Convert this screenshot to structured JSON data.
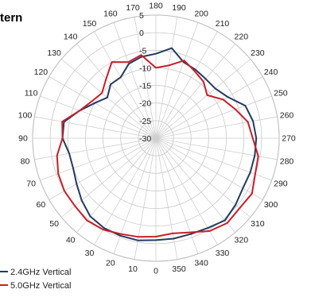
{
  "chart_data": {
    "type": "radar",
    "title": "tern",
    "angle_direction": "clockwise",
    "angle_zero": "top",
    "angle_ticks": [
      180,
      190,
      200,
      210,
      220,
      230,
      240,
      250,
      260,
      270,
      280,
      290,
      300,
      310,
      320,
      330,
      340,
      350,
      0,
      10,
      20,
      30,
      40,
      50,
      60,
      70,
      80,
      90,
      100,
      110,
      120,
      130,
      140,
      150,
      160,
      170
    ],
    "radial_ticks": [
      5,
      0,
      -5,
      -10,
      -15,
      -20,
      -25,
      -30
    ],
    "rlim": [
      -30,
      5
    ],
    "grid": true,
    "legend_position": "bottom-left",
    "series": [
      {
        "name": "2.4GHz Vertical",
        "color": "#243a5e",
        "values": [
          -6,
          -4,
          -7,
          -7.5,
          -8,
          -8,
          -6.5,
          -3,
          -2,
          -1.5,
          -1.5,
          -1.5,
          -1.5,
          -0.5,
          0.5,
          -0.5,
          -1,
          -1,
          -1,
          -0.5,
          -0.5,
          -0.5,
          -1,
          -2.5,
          -4,
          -5,
          -5,
          -3.5,
          -3.5,
          -7,
          -10,
          -12,
          -10,
          -10,
          -7.5,
          -6.5
        ]
      },
      {
        "name": "5.0GHz Vertical",
        "color": "#c81e28",
        "values": [
          -10,
          -9,
          -6.5,
          -8,
          -9,
          -11,
          -8,
          -6,
          -3.5,
          -2.5,
          -0.5,
          0,
          1.5,
          1,
          1.5,
          0.5,
          -1.5,
          -2.5,
          -2,
          -1.5,
          -1,
          0,
          0.5,
          0,
          0,
          -0.5,
          -1.5,
          -3.5,
          -3,
          -7,
          -9,
          -10,
          -8,
          -5,
          -7,
          -6
        ]
      }
    ]
  }
}
